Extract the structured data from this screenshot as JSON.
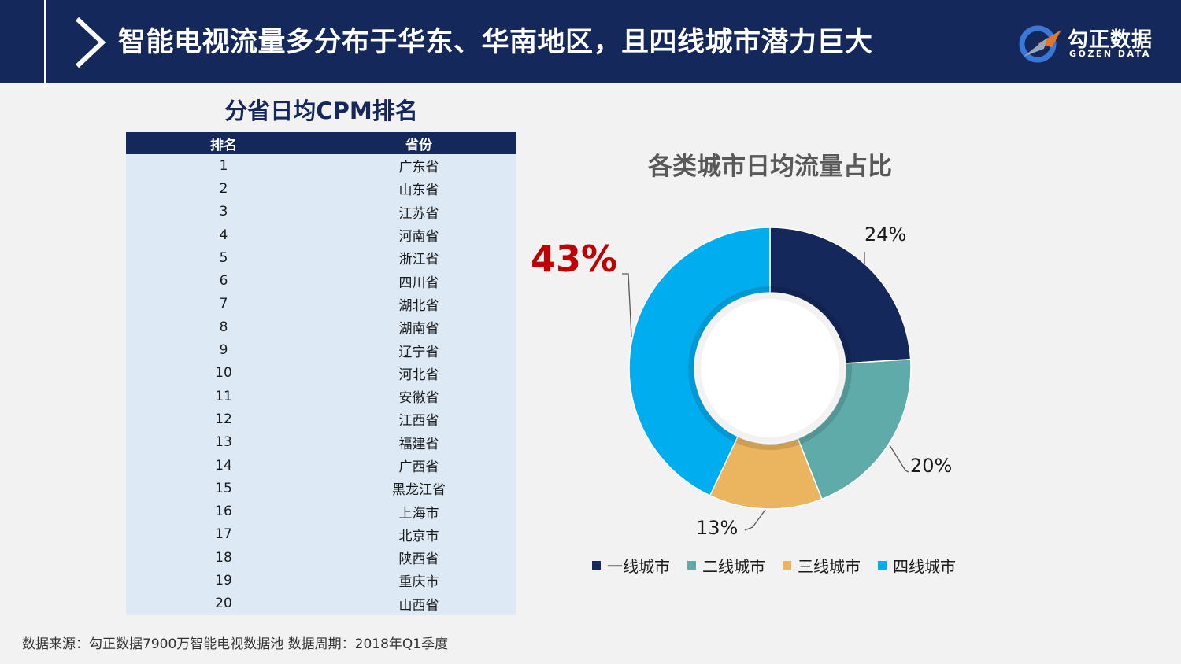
{
  "header": {
    "title": "智能电视流量多分布于华东、华南地区，且四线城市潜力巨大",
    "logo_cn": "勾正数据",
    "logo_en": "GOZEN DATA"
  },
  "province_table": {
    "title": "分省日均CPM排名",
    "columns": [
      "排名",
      "省份"
    ],
    "rows": [
      [
        "1",
        "广东省"
      ],
      [
        "2",
        "山东省"
      ],
      [
        "3",
        "江苏省"
      ],
      [
        "4",
        "河南省"
      ],
      [
        "5",
        "浙江省"
      ],
      [
        "6",
        "四川省"
      ],
      [
        "7",
        "湖北省"
      ],
      [
        "8",
        "湖南省"
      ],
      [
        "9",
        "辽宁省"
      ],
      [
        "10",
        "河北省"
      ],
      [
        "11",
        "安徽省"
      ],
      [
        "12",
        "江西省"
      ],
      [
        "13",
        "福建省"
      ],
      [
        "14",
        "广西省"
      ],
      [
        "15",
        "黑龙江省"
      ],
      [
        "16",
        "上海市"
      ],
      [
        "17",
        "北京市"
      ],
      [
        "18",
        "陕西省"
      ],
      [
        "19",
        "重庆市"
      ],
      [
        "20",
        "山西省"
      ]
    ]
  },
  "chart_data": {
    "type": "pie",
    "title": "各类城市日均流量占比",
    "categories": [
      "一线城市",
      "二线城市",
      "三线城市",
      "四线城市"
    ],
    "values": [
      24,
      20,
      13,
      43
    ],
    "labels": [
      "24%",
      "20%",
      "13%",
      "43%"
    ],
    "colors": [
      "#14285c",
      "#5fabaa",
      "#ebb45e",
      "#00aeef"
    ],
    "highlight_color": "#c00000",
    "legend_position": "bottom"
  },
  "footer": {
    "source": "数据来源：勾正数据7900万智能电视数据池  数据周期：2018年Q1季度"
  }
}
